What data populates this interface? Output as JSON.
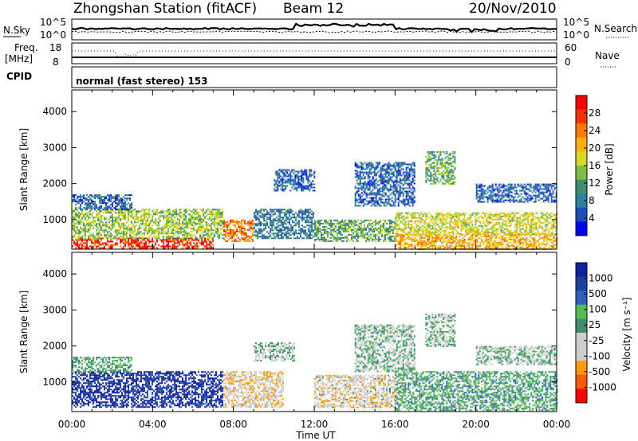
{
  "header": {
    "station": "Zhongshan Station (fitACF)",
    "beam": "Beam 12",
    "date": "20/Nov/2010"
  },
  "top_panels": {
    "nsky_label": "N.Sky",
    "nsky_ticks": [
      "10^5",
      "10^0"
    ],
    "nsearch_label": "N.Search",
    "nsearch_ticks": [
      "10^5",
      "10^0"
    ],
    "freq_label_line1": "Freq.",
    "freq_label_line2": "[MHz]",
    "freq_ticks": [
      "18",
      "8"
    ],
    "nave_label": "Nave",
    "nave_ticks": [
      "60",
      "0"
    ],
    "cpid_label": "CPID",
    "cpid_text": "normal (fast stereo) 153"
  },
  "axes": {
    "ylabel": "Slant Range [km]",
    "yticks": [
      "4000",
      "3000",
      "2000",
      "1000"
    ],
    "xlabel": "Time UT",
    "xticks": [
      "00:00",
      "04:00",
      "08:00",
      "12:00",
      "16:00",
      "20:00",
      "00:00"
    ]
  },
  "colors": {
    "power_scale": [
      "#0000ff",
      "#1f4fbf",
      "#2f7fa0",
      "#3f8f6f",
      "#7fbf3f",
      "#d9d91f",
      "#ffb000",
      "#ff7a00",
      "#ff3000",
      "#ff0000"
    ],
    "velocity_scale": [
      "#ff0000",
      "#ff5a00",
      "#ff9a00",
      "#cfcfcf",
      "#cfcfcf",
      "#3f8f6f",
      "#4fbf4f",
      "#2f5fbf",
      "#1f3fa0",
      "#1020a0"
    ]
  },
  "chart_data": [
    {
      "type": "heatmap",
      "title": "",
      "xlabel": "Time UT",
      "ylabel": "Slant Range [km]",
      "xlim": [
        "00:00",
        "24:00"
      ],
      "ylim": [
        180,
        4600
      ],
      "colorbar": {
        "label": "Power [dB]",
        "ticks": [
          "28",
          "24",
          "20",
          "16",
          "12",
          "8",
          "4"
        ],
        "range": [
          0,
          30
        ]
      },
      "features": [
        {
          "start_h": 0.0,
          "end_h": 7.0,
          "range_km": [
            200,
            500
          ],
          "value": 26
        },
        {
          "start_h": 0.0,
          "end_h": 7.5,
          "range_km": [
            500,
            1300
          ],
          "value": 14
        },
        {
          "start_h": 0.0,
          "end_h": 3.0,
          "range_km": [
            1300,
            1700
          ],
          "value": 6
        },
        {
          "start_h": 7.5,
          "end_h": 9.0,
          "range_km": [
            400,
            1000
          ],
          "value": 22
        },
        {
          "start_h": 9.0,
          "end_h": 12.0,
          "range_km": [
            500,
            1300
          ],
          "value": 8
        },
        {
          "start_h": 10.0,
          "end_h": 12.0,
          "range_km": [
            1800,
            2400
          ],
          "value": 6
        },
        {
          "start_h": 12.0,
          "end_h": 16.0,
          "range_km": [
            400,
            1000
          ],
          "value": 12
        },
        {
          "start_h": 14.0,
          "end_h": 17.0,
          "range_km": [
            1400,
            2600
          ],
          "value": 6
        },
        {
          "start_h": 16.0,
          "end_h": 24.0,
          "range_km": [
            200,
            600
          ],
          "value": 20
        },
        {
          "start_h": 16.0,
          "end_h": 24.0,
          "range_km": [
            600,
            1200
          ],
          "value": 16
        },
        {
          "start_h": 17.5,
          "end_h": 19.0,
          "range_km": [
            2000,
            2900
          ],
          "value": 12
        },
        {
          "start_h": 20.0,
          "end_h": 24.0,
          "range_km": [
            1500,
            2000
          ],
          "value": 6
        }
      ]
    },
    {
      "type": "heatmap",
      "title": "",
      "xlabel": "Time UT",
      "ylabel": "Slant Range [km]",
      "xlim": [
        "00:00",
        "24:00"
      ],
      "ylim": [
        180,
        4600
      ],
      "colorbar": {
        "label": "Velocity [m s⁻¹]",
        "ticks": [
          "1000",
          "500",
          "100",
          "25",
          "-25",
          "-100",
          "-500",
          "-1000"
        ],
        "range": [
          -1000,
          1000
        ]
      },
      "features": [
        {
          "start_h": 0.0,
          "end_h": 7.5,
          "range_km": [
            300,
            1300
          ],
          "value": 800
        },
        {
          "start_h": 0.0,
          "end_h": 3.0,
          "range_km": [
            1300,
            1700
          ],
          "value": 150
        },
        {
          "start_h": 7.5,
          "end_h": 10.5,
          "range_km": [
            300,
            1300
          ],
          "value": -300
        },
        {
          "start_h": 9.0,
          "end_h": 11.0,
          "range_km": [
            1600,
            2100
          ],
          "value": -50
        },
        {
          "start_h": 12.0,
          "end_h": 16.0,
          "range_km": [
            300,
            1200
          ],
          "value": -250
        },
        {
          "start_h": 14.0,
          "end_h": 17.0,
          "range_km": [
            1300,
            2600
          ],
          "value": 0
        },
        {
          "start_h": 16.0,
          "end_h": 24.0,
          "range_km": [
            200,
            1300
          ],
          "value": 200
        },
        {
          "start_h": 17.5,
          "end_h": 19.0,
          "range_km": [
            2000,
            2900
          ],
          "value": 0
        },
        {
          "start_h": 20.0,
          "end_h": 24.0,
          "range_km": [
            1500,
            2000
          ],
          "value": 0
        }
      ]
    }
  ]
}
